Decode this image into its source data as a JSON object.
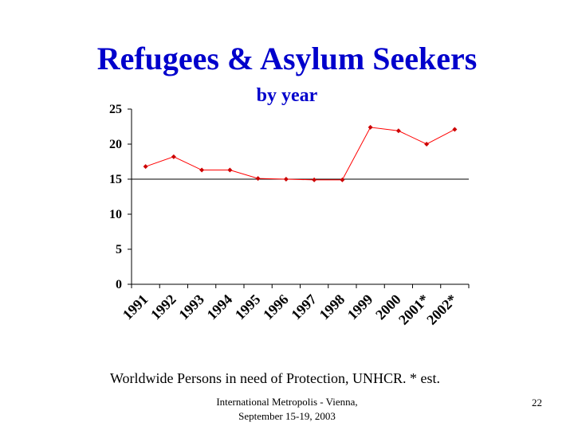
{
  "slide": {
    "title": "Refugees & Asylum Seekers",
    "subtitle": "by year",
    "caption": "Worldwide Persons in need of Protection, UNHCR.  * est.",
    "footer_line1": "International Metropolis - Vienna,",
    "footer_line2": "September 15-19, 2003",
    "page_number": "22"
  },
  "chart_data": {
    "type": "line",
    "title": "",
    "xlabel": "",
    "ylabel": "",
    "categories": [
      "1991",
      "1992",
      "1993",
      "1994",
      "1995",
      "1996",
      "1997",
      "1998",
      "1999",
      "2000",
      "2001*",
      "2002*"
    ],
    "series": [
      {
        "values": [
          16.8,
          18.2,
          16.3,
          16.3,
          15.1,
          15.0,
          14.9,
          14.9,
          22.4,
          21.9,
          20.0,
          22.1
        ]
      }
    ],
    "ylim": [
      0,
      25
    ],
    "yticks": [
      0,
      5,
      10,
      15,
      20,
      25
    ],
    "grid": "horizontal line at 15",
    "colors": {
      "line": "#ff0000",
      "marker": "#cc0000",
      "axis": "#000000"
    }
  }
}
